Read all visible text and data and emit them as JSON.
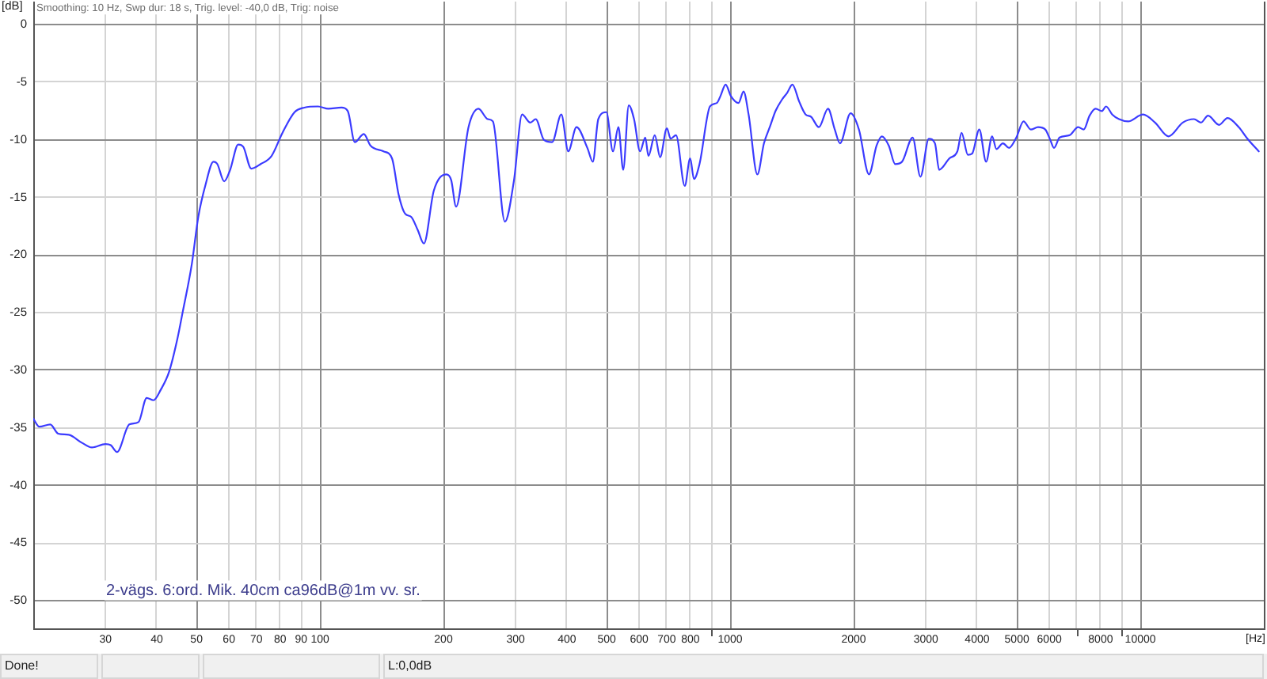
{
  "chart_data": {
    "type": "line",
    "xlabel": "[Hz]",
    "ylabel": "[dB]",
    "annotations": [
      "Smoothing: 10 Hz, Swp dur: 18 s, Trig. level: -40,0 dB, Trig: noise",
      "2-vägs. 6:ord. Mik. 40cm ca96dB@1m vv. sr.",
      "Done!",
      "L:0,0dB"
    ],
    "x": [
      20,
      20.7,
      22,
      23,
      24.4,
      26.3,
      27.8,
      30,
      30.9,
      32,
      34.3,
      36.1,
      37.8,
      39.3,
      40.9,
      42.9,
      44.9,
      46.3,
      48.7,
      50.5,
      52.6,
      55,
      56.2,
      58.4,
      60.4,
      63.2,
      65,
      68,
      71.7,
      76.2,
      81,
      86.7,
      91.6,
      98.9,
      104.8,
      112.8,
      116.9,
      121.6,
      127.9,
      132.8,
      142.9,
      149.8,
      155.6,
      161.2,
      167,
      173,
      179.2,
      189.5,
      203.4,
      208.9,
      214.7,
      230.2,
      243.5,
      256.4,
      264,
      282.4,
      297.2,
      311,
      325.7,
      335.7,
      351.5,
      368,
      387.6,
      403,
      422,
      448.6,
      462.6,
      477,
      499,
      518,
      534,
      548.6,
      566,
      583,
      603,
      621,
      632,
      655,
      675,
      701,
      716,
      738,
      775,
      799,
      816,
      842,
      893,
      928,
      947,
      975,
      1004,
      1048,
      1078,
      1109,
      1165,
      1209,
      1252,
      1290,
      1338,
      1378,
      1418,
      1474,
      1528,
      1575,
      1645,
      1732,
      1799,
      1852,
      1966,
      2060,
      2180,
      2275,
      2344,
      2436,
      2525,
      2624,
      2785,
      2910,
      3050,
      3157,
      3232,
      3426,
      3580,
      3666,
      3797,
      3889,
      4049,
      4207,
      4352,
      4457,
      4623,
      4786,
      4985,
      5191,
      5407,
      5631,
      5864,
      6030,
      6158,
      6355,
      6720,
      7050,
      7280,
      7520,
      7780,
      8060,
      8250,
      8540,
      8870,
      9330,
      10150,
      10860,
      11710,
      12690,
      13510,
      14050,
      14620,
      15560,
      16310,
      17380,
      18240,
      19440
    ],
    "series": [
      {
        "color": "#3b3bff",
        "values": [
          -34.2,
          -34.9,
          -34.7,
          -35.5,
          -35.6,
          -36.3,
          -36.7,
          -36.4,
          -36.5,
          -37.1,
          -34.7,
          -34.5,
          -32.4,
          -32.6,
          -31.7,
          -30.1,
          -27.3,
          -24.9,
          -20.8,
          -16.7,
          -13.9,
          -11.9,
          -12.1,
          -13.6,
          -12.6,
          -10.4,
          -10.6,
          -12.5,
          -12.1,
          -11.4,
          -9.4,
          -7.6,
          -7.2,
          -7.1,
          -7.3,
          -7.2,
          -7.5,
          -10.2,
          -9.5,
          -10.5,
          -11.0,
          -11.6,
          -14.8,
          -16.4,
          -16.7,
          -17.8,
          -19.0,
          -14.4,
          -13.0,
          -13.5,
          -15.8,
          -8.9,
          -7.3,
          -8.2,
          -8.4,
          -17.1,
          -13.5,
          -7.8,
          -8.5,
          -8.2,
          -10.0,
          -10.2,
          -7.8,
          -11.0,
          -8.9,
          -10.7,
          -11.9,
          -8.2,
          -7.6,
          -11.0,
          -8.9,
          -12.6,
          -7.0,
          -8.2,
          -11.0,
          -9.8,
          -11.4,
          -9.6,
          -11.5,
          -9.0,
          -9.9,
          -9.6,
          -14.0,
          -11.6,
          -13.4,
          -12.1,
          -7.1,
          -6.8,
          -6.2,
          -5.2,
          -6.2,
          -6.8,
          -5.8,
          -7.8,
          -13.0,
          -10.3,
          -8.8,
          -7.5,
          -6.5,
          -5.9,
          -5.2,
          -6.7,
          -7.8,
          -8.0,
          -8.9,
          -7.3,
          -9.1,
          -10.3,
          -7.7,
          -9.1,
          -13.0,
          -10.5,
          -9.7,
          -10.5,
          -12.1,
          -11.9,
          -9.8,
          -13.2,
          -9.9,
          -10.3,
          -12.6,
          -11.6,
          -11.0,
          -9.4,
          -11.3,
          -11.2,
          -9.1,
          -11.9,
          -9.7,
          -10.8,
          -10.3,
          -10.7,
          -9.8,
          -8.4,
          -9.1,
          -8.9,
          -9.1,
          -10.0,
          -10.7,
          -9.8,
          -9.6,
          -8.9,
          -9.1,
          -7.9,
          -7.3,
          -7.5,
          -7.1,
          -7.8,
          -8.2,
          -8.4,
          -7.8,
          -8.5,
          -9.7,
          -8.5,
          -8.2,
          -8.5,
          -7.9,
          -8.7,
          -8.1,
          -8.9,
          -9.9,
          -11.0
        ]
      }
    ],
    "xlim": [
      20,
      20000
    ],
    "ylim": [
      -52.4,
      2
    ],
    "xticks": [
      30,
      40,
      50,
      60,
      70,
      80,
      90,
      100,
      200,
      300,
      400,
      500,
      600,
      700,
      800,
      {
        "value": 900,
        "label": null
      },
      1000,
      2000,
      3000,
      4000,
      5000,
      6000,
      {
        "value": 7000,
        "label": null
      },
      8000,
      {
        "value": 9000,
        "label": null
      },
      10000
    ],
    "yticks": [
      0,
      -5,
      -10,
      -15,
      -20,
      -25,
      -30,
      -35,
      -40,
      -45,
      -50
    ],
    "log": "x",
    "grid": true
  }
}
